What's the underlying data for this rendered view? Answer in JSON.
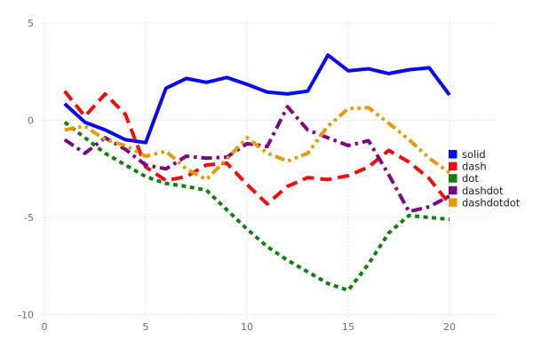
{
  "chart_data": {
    "type": "line",
    "title": "",
    "xlabel": "",
    "ylabel": "",
    "x": [
      1,
      2,
      3,
      4,
      5,
      6,
      7,
      8,
      9,
      10,
      11,
      12,
      13,
      14,
      15,
      16,
      17,
      18,
      19,
      20
    ],
    "series": [
      {
        "name": "solid",
        "color": "#0a0af0",
        "dash": "",
        "values": [
          0.85,
          -0.1,
          -0.5,
          -1.0,
          -1.15,
          1.65,
          2.15,
          1.95,
          2.2,
          1.85,
          1.45,
          1.35,
          1.5,
          3.35,
          2.55,
          2.65,
          2.4,
          2.6,
          2.7,
          1.3
        ]
      },
      {
        "name": "dash",
        "color": "#ee0d0d",
        "dash": "13 7",
        "values": [
          1.5,
          0.2,
          1.35,
          0.3,
          -2.4,
          -3.1,
          -2.9,
          -2.3,
          -2.2,
          -3.3,
          -4.3,
          -3.4,
          -2.95,
          -3.05,
          -2.85,
          -2.4,
          -1.55,
          -2.15,
          -3.0,
          -4.3
        ]
      },
      {
        "name": "dot",
        "color": "#127d12",
        "dash": "5 4.5",
        "values": [
          -0.1,
          -0.9,
          -1.7,
          -2.3,
          -2.9,
          -3.25,
          -3.4,
          -3.6,
          -4.6,
          -5.6,
          -6.5,
          -7.2,
          -7.8,
          -8.4,
          -8.75,
          -7.4,
          -5.8,
          -4.9,
          -5.0,
          -5.1
        ]
      },
      {
        "name": "dashdot",
        "color": "#7c067c",
        "dash": "12 5 3.5 5",
        "values": [
          -1.0,
          -1.7,
          -0.9,
          -1.5,
          -2.3,
          -2.5,
          -1.85,
          -1.95,
          -1.9,
          -1.2,
          -1.35,
          0.7,
          -0.5,
          -0.9,
          -1.3,
          -1.05,
          -2.8,
          -4.7,
          -4.45,
          -3.9
        ]
      },
      {
        "name": "dashdotdot",
        "color": "#e29b0d",
        "dash": "11 4.5 3.5 4.5 3.5 4.5",
        "values": [
          -0.5,
          -0.3,
          -1.0,
          -1.3,
          -1.85,
          -1.6,
          -2.5,
          -3.05,
          -2.0,
          -0.9,
          -1.7,
          -2.1,
          -1.7,
          -0.3,
          0.6,
          0.65,
          -0.15,
          -1.0,
          -1.95,
          -2.7
        ]
      }
    ],
    "xticks": [
      "0",
      "5",
      "10",
      "15",
      "20"
    ],
    "xtick_values": [
      0,
      5,
      10,
      15,
      20
    ],
    "yticks": [
      "5",
      "0",
      "-5",
      "-10"
    ],
    "ytick_values": [
      5,
      0,
      -5,
      -10
    ],
    "grid": "dotted light-gray, both axes, no spines",
    "legend_position": "right",
    "legend_entries": [
      "solid",
      "dash",
      "dot",
      "dashdot",
      "dashdotdot"
    ],
    "grid_color": "#d9d9e0",
    "background_color": "#ffffff"
  }
}
